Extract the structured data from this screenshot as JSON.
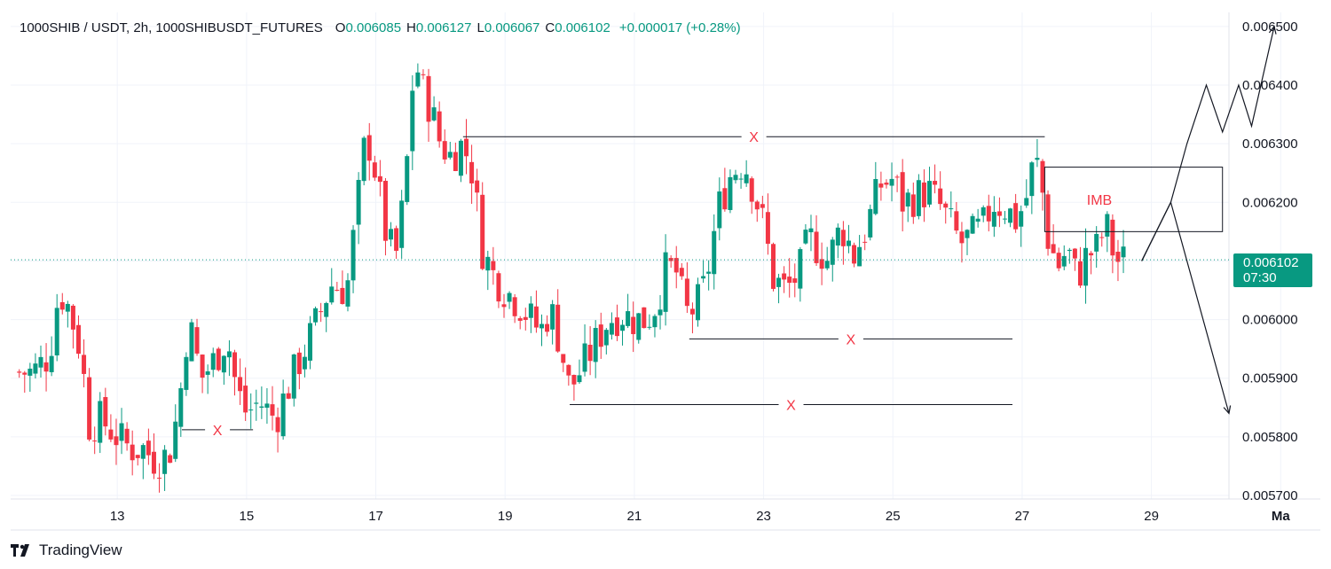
{
  "header": {
    "symbol": "1000SHIB / USDT, 2h, 1000SHIBUSDT_FUTURES",
    "o_label": "O",
    "o_value": "0.006085",
    "h_label": "H",
    "h_value": "0.006127",
    "l_label": "L",
    "l_value": "0.006067",
    "c_label": "C",
    "c_value": "0.006102",
    "change": "+0.000017 (+0.28%)"
  },
  "price_tag": {
    "price": "0.006102",
    "countdown": "07:30"
  },
  "brand": {
    "name": "TradingView"
  },
  "colors": {
    "up": "#089981",
    "down": "#f23645",
    "grid": "#f0f3fa",
    "text": "#131722",
    "annotation": "#f23645"
  },
  "chart_data": {
    "type": "candlestick",
    "y_axis": {
      "range": [
        0.0057,
        0.00653
      ],
      "ticks": [
        "0.005700",
        "0.005800",
        "0.005900",
        "0.006000",
        "0.006100",
        "0.006200",
        "0.006300",
        "0.006400",
        "0.006500"
      ]
    },
    "x_axis": {
      "range_days": [
        11.35,
        30.2
      ],
      "ticks": [
        {
          "day": 13,
          "label": "13"
        },
        {
          "day": 15,
          "label": "15"
        },
        {
          "day": 17,
          "label": "17"
        },
        {
          "day": 19,
          "label": "19"
        },
        {
          "day": 21,
          "label": "21"
        },
        {
          "day": 23,
          "label": "23"
        },
        {
          "day": 25,
          "label": "25"
        },
        {
          "day": 27,
          "label": "27"
        },
        {
          "day": 29,
          "label": "29"
        },
        {
          "day": 31,
          "label": "Ma"
        }
      ]
    },
    "last_price": 0.006102,
    "close_path": [
      [
        11.4,
        0.00591
      ],
      [
        11.7,
        0.00591
      ],
      [
        11.95,
        0.00594
      ],
      [
        12.1,
        0.00605
      ],
      [
        12.25,
        0.00602
      ],
      [
        12.45,
        0.00594
      ],
      [
        12.55,
        0.00582
      ],
      [
        12.75,
        0.00583
      ],
      [
        13.0,
        0.0058
      ],
      [
        13.2,
        0.00578
      ],
      [
        13.4,
        0.00578
      ],
      [
        13.6,
        0.00576
      ],
      [
        13.8,
        0.00577
      ],
      [
        13.95,
        0.00585
      ],
      [
        14.1,
        0.006
      ],
      [
        14.3,
        0.0059
      ],
      [
        14.5,
        0.00593
      ],
      [
        14.7,
        0.00597
      ],
      [
        14.85,
        0.00588
      ],
      [
        15.0,
        0.00584
      ],
      [
        15.2,
        0.00586
      ],
      [
        15.45,
        0.00583
      ],
      [
        15.7,
        0.0059
      ],
      [
        15.9,
        0.00595
      ],
      [
        16.1,
        0.006
      ],
      [
        16.3,
        0.00606
      ],
      [
        16.55,
        0.00605
      ],
      [
        16.7,
        0.00618
      ],
      [
        16.85,
        0.00632
      ],
      [
        17.0,
        0.00625
      ],
      [
        17.15,
        0.00615
      ],
      [
        17.3,
        0.0061
      ],
      [
        17.45,
        0.00622
      ],
      [
        17.6,
        0.00645
      ],
      [
        17.7,
        0.0064
      ],
      [
        17.85,
        0.00636
      ],
      [
        18.0,
        0.0063
      ],
      [
        18.15,
        0.00628
      ],
      [
        18.35,
        0.0063
      ],
      [
        18.5,
        0.00625
      ],
      [
        18.65,
        0.00612
      ],
      [
        18.8,
        0.00608
      ],
      [
        19.0,
        0.00605
      ],
      [
        19.2,
        0.00603
      ],
      [
        19.4,
        0.006
      ],
      [
        19.55,
        0.00598
      ],
      [
        19.7,
        0.00602
      ],
      [
        19.85,
        0.00596
      ],
      [
        20.0,
        0.00588
      ],
      [
        20.2,
        0.00592
      ],
      [
        20.4,
        0.00596
      ],
      [
        20.6,
        0.006
      ],
      [
        20.8,
        0.00601
      ],
      [
        21.0,
        0.006
      ],
      [
        21.2,
        0.006
      ],
      [
        21.35,
        0.00603
      ],
      [
        21.5,
        0.00609
      ],
      [
        21.65,
        0.00608
      ],
      [
        21.8,
        0.00601
      ],
      [
        21.95,
        0.00602
      ],
      [
        22.1,
        0.00606
      ],
      [
        22.3,
        0.00619
      ],
      [
        22.5,
        0.00625
      ],
      [
        22.7,
        0.00627
      ],
      [
        22.85,
        0.00622
      ],
      [
        23.0,
        0.00616
      ],
      [
        23.15,
        0.00607
      ],
      [
        23.35,
        0.00605
      ],
      [
        23.55,
        0.00608
      ],
      [
        23.7,
        0.00614
      ],
      [
        23.85,
        0.00612
      ],
      [
        24.0,
        0.0061
      ],
      [
        24.2,
        0.00616
      ],
      [
        24.4,
        0.00611
      ],
      [
        24.6,
        0.00616
      ],
      [
        24.8,
        0.00623
      ],
      [
        25.0,
        0.00624
      ],
      [
        25.15,
        0.0062
      ],
      [
        25.35,
        0.00621
      ],
      [
        25.55,
        0.00622
      ],
      [
        25.75,
        0.00619
      ],
      [
        25.9,
        0.00616
      ],
      [
        26.05,
        0.00613
      ],
      [
        26.2,
        0.00614
      ],
      [
        26.4,
        0.00616
      ],
      [
        26.55,
        0.0062
      ],
      [
        26.75,
        0.00619
      ],
      [
        26.9,
        0.00617
      ],
      [
        27.05,
        0.0062
      ],
      [
        27.2,
        0.00628
      ],
      [
        27.3,
        0.00623
      ],
      [
        27.4,
        0.00614
      ],
      [
        27.55,
        0.00609
      ],
      [
        27.7,
        0.00612
      ],
      [
        27.85,
        0.00607
      ],
      [
        28.0,
        0.00611
      ],
      [
        28.15,
        0.00612
      ],
      [
        28.3,
        0.00616
      ],
      [
        28.45,
        0.0061
      ],
      [
        28.6,
        0.0061
      ]
    ],
    "annotations": {
      "levels": [
        {
          "from_day": 18.35,
          "to_day": 27.35,
          "price": 0.006312,
          "label": "X"
        },
        {
          "from_day": 21.85,
          "to_day": 26.85,
          "price": 0.005967,
          "label": "X"
        },
        {
          "from_day": 20.0,
          "to_day": 26.85,
          "price": 0.005855,
          "label": "X"
        },
        {
          "from_day": 14.0,
          "to_day": 15.1,
          "price": 0.005812,
          "label": "X"
        }
      ],
      "imbalance_box": {
        "from_day": 27.35,
        "to_day": 30.1,
        "price_low": 0.00615,
        "price_high": 0.00626,
        "label": "IMB"
      },
      "projection_up": [
        [
          28.85,
          0.0061
        ],
        [
          29.3,
          0.0062
        ],
        [
          29.55,
          0.0063
        ],
        [
          29.85,
          0.0064
        ],
        [
          30.1,
          0.00632
        ],
        [
          30.35,
          0.0064
        ],
        [
          30.55,
          0.00633
        ],
        [
          30.9,
          0.0065
        ]
      ],
      "projection_down": [
        [
          28.85,
          0.0061
        ],
        [
          29.3,
          0.0062
        ],
        [
          30.2,
          0.00584
        ]
      ]
    }
  }
}
